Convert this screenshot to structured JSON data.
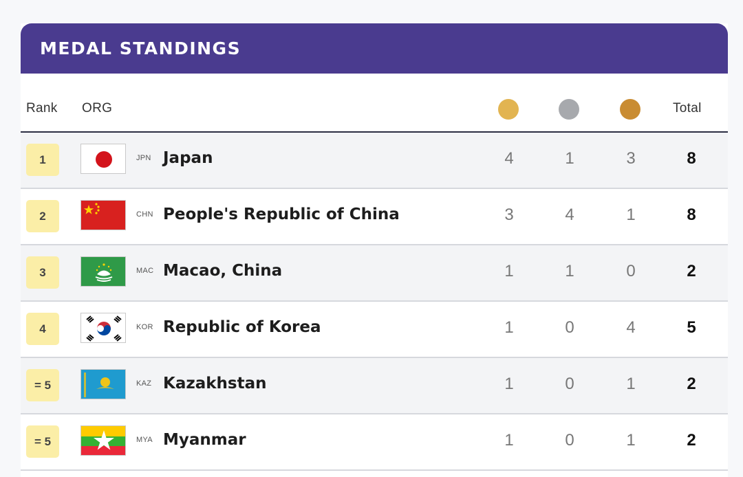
{
  "header": {
    "title": "MEDAL STANDINGS"
  },
  "columns": {
    "rank": "Rank",
    "org": "ORG",
    "total": "Total"
  },
  "medal_colors": {
    "gold": "#e2b451",
    "silver": "#a7a9ad",
    "bronze": "#c98c32"
  },
  "rows": [
    {
      "rank": "1",
      "code": "JPN",
      "name": "Japan",
      "gold": "4",
      "silver": "1",
      "bronze": "3",
      "total": "8",
      "flag": "japan"
    },
    {
      "rank": "2",
      "code": "CHN",
      "name": "People's Republic of China",
      "gold": "3",
      "silver": "4",
      "bronze": "1",
      "total": "8",
      "flag": "china"
    },
    {
      "rank": "3",
      "code": "MAC",
      "name": "Macao, China",
      "gold": "1",
      "silver": "1",
      "bronze": "0",
      "total": "2",
      "flag": "macao"
    },
    {
      "rank": "4",
      "code": "KOR",
      "name": "Republic of Korea",
      "gold": "1",
      "silver": "0",
      "bronze": "4",
      "total": "5",
      "flag": "korea"
    },
    {
      "rank": "= 5",
      "code": "KAZ",
      "name": "Kazakhstan",
      "gold": "1",
      "silver": "0",
      "bronze": "1",
      "total": "2",
      "flag": "kazakhstan"
    },
    {
      "rank": "= 5",
      "code": "MYA",
      "name": "Myanmar",
      "gold": "1",
      "silver": "0",
      "bronze": "1",
      "total": "2",
      "flag": "myanmar"
    }
  ]
}
